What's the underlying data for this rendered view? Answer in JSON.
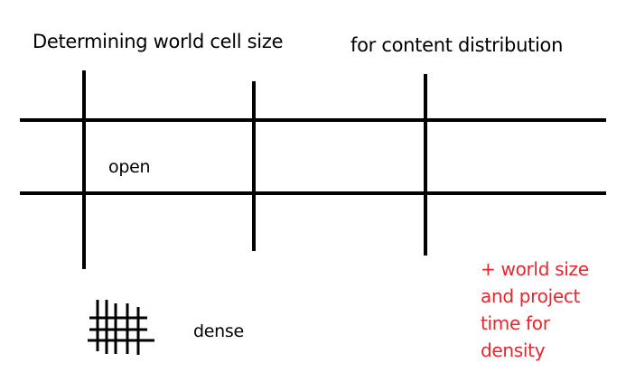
{
  "title_left": "Determining world cell size",
  "title_right": "for content distribution",
  "label_open": "open",
  "label_dense": "dense",
  "note": {
    "lines": [
      "+ world size",
      "and project",
      "time for",
      "density"
    ],
    "color": "#e8242c"
  },
  "line_color": "#000000"
}
